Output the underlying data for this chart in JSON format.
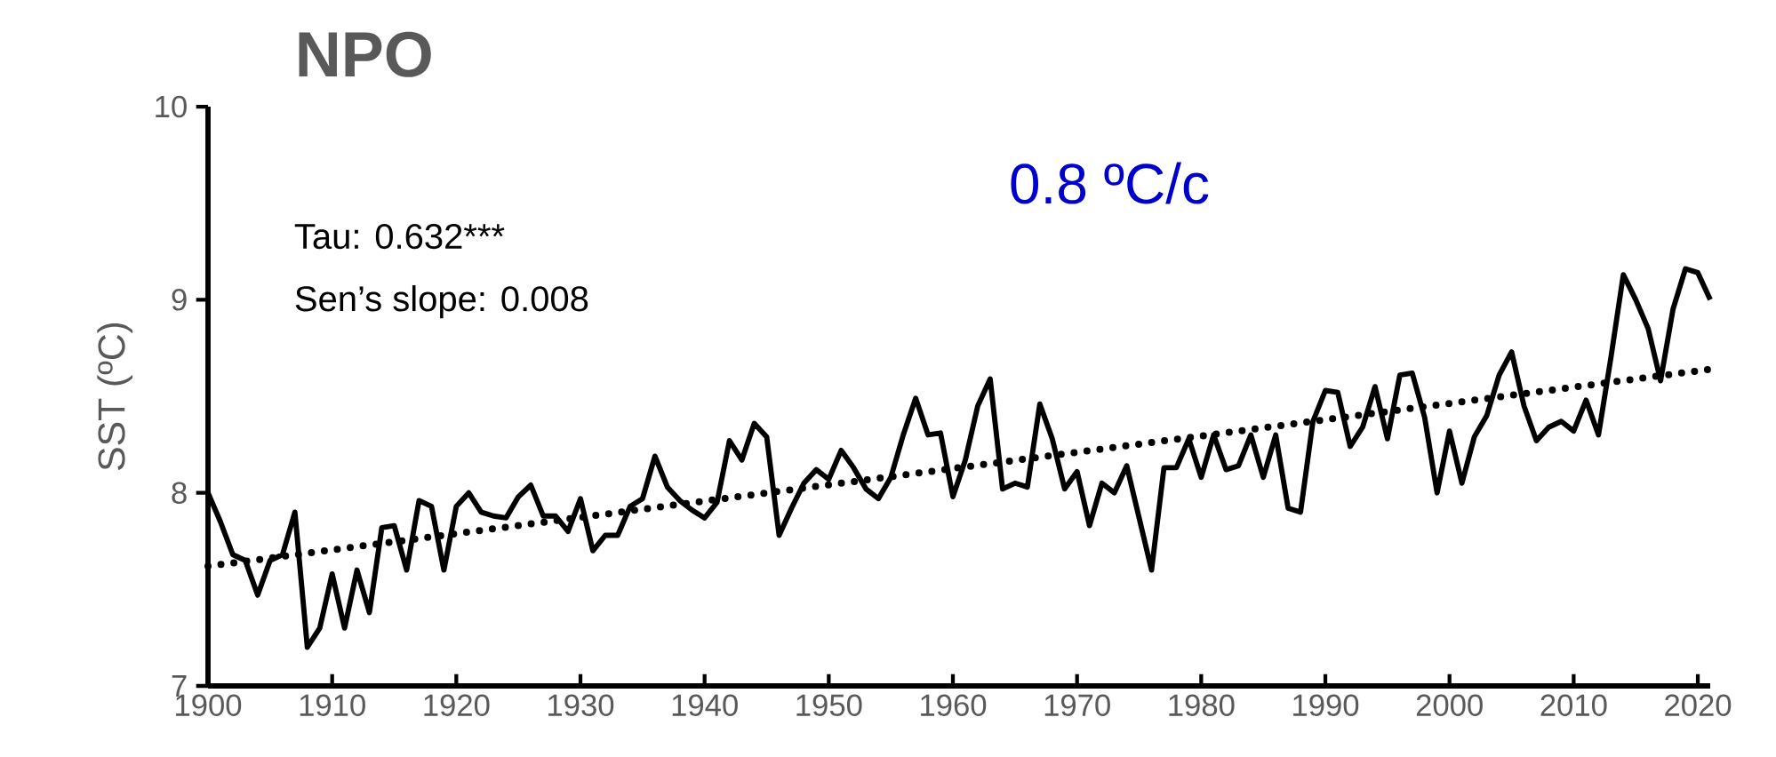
{
  "chart_data": {
    "type": "line",
    "title": "NPO",
    "ylabel": "SST (ºC)",
    "xlim": [
      1900,
      2021
    ],
    "ylim": [
      7,
      10
    ],
    "xticks": [
      1900,
      1910,
      1920,
      1930,
      1940,
      1950,
      1960,
      1970,
      1980,
      1990,
      2000,
      2010,
      2020
    ],
    "yticks": [
      7,
      8,
      9,
      10
    ],
    "marker": "none",
    "grid": false,
    "annotations": [
      "Tau: 0.632***",
      "Sen’s slope: 0.008",
      "0.8 ºC/c"
    ],
    "series": [
      {
        "color": "#000000",
        "line_style": "solid",
        "x": [
          1900,
          1901,
          1902,
          1903,
          1904,
          1905,
          1906,
          1907,
          1908,
          1909,
          1910,
          1911,
          1912,
          1913,
          1914,
          1915,
          1916,
          1917,
          1918,
          1919,
          1920,
          1921,
          1922,
          1923,
          1924,
          1925,
          1926,
          1927,
          1928,
          1929,
          1930,
          1931,
          1932,
          1933,
          1934,
          1935,
          1936,
          1937,
          1938,
          1939,
          1940,
          1941,
          1942,
          1943,
          1944,
          1945,
          1946,
          1947,
          1948,
          1949,
          1950,
          1951,
          1952,
          1953,
          1954,
          1955,
          1956,
          1957,
          1958,
          1959,
          1960,
          1961,
          1962,
          1963,
          1964,
          1965,
          1966,
          1967,
          1968,
          1969,
          1970,
          1971,
          1972,
          1973,
          1974,
          1975,
          1976,
          1977,
          1978,
          1979,
          1980,
          1981,
          1982,
          1983,
          1984,
          1985,
          1986,
          1987,
          1988,
          1989,
          1990,
          1991,
          1992,
          1993,
          1994,
          1995,
          1996,
          1997,
          1998,
          1999,
          2000,
          2001,
          2002,
          2003,
          2004,
          2005,
          2006,
          2007,
          2008,
          2009,
          2010,
          2011,
          2012,
          2013,
          2014,
          2015,
          2016,
          2017,
          2018,
          2019,
          2020,
          2021
        ],
        "values": [
          8.0,
          7.85,
          7.68,
          7.65,
          7.47,
          7.65,
          7.68,
          7.9,
          7.2,
          7.3,
          7.58,
          7.3,
          7.6,
          7.38,
          7.82,
          7.83,
          7.6,
          7.96,
          7.93,
          7.6,
          7.93,
          8.0,
          7.9,
          7.88,
          7.87,
          7.98,
          8.04,
          7.88,
          7.88,
          7.8,
          7.97,
          7.7,
          7.78,
          7.78,
          7.93,
          7.97,
          8.19,
          8.03,
          7.96,
          7.91,
          7.87,
          7.95,
          8.27,
          8.17,
          8.36,
          8.29,
          7.78,
          7.92,
          8.05,
          8.12,
          8.07,
          8.22,
          8.13,
          8.02,
          7.97,
          8.08,
          8.3,
          8.49,
          8.3,
          8.31,
          7.98,
          8.17,
          8.45,
          8.59,
          8.02,
          8.05,
          8.03,
          8.46,
          8.28,
          8.02,
          8.11,
          7.83,
          8.05,
          8.0,
          8.14,
          7.87,
          7.6,
          8.13,
          8.13,
          8.28,
          8.08,
          8.3,
          8.12,
          8.14,
          8.3,
          8.08,
          8.3,
          7.92,
          7.9,
          8.37,
          8.53,
          8.52,
          8.24,
          8.34,
          8.55,
          8.28,
          8.61,
          8.62,
          8.39,
          8.0,
          8.32,
          8.05,
          8.29,
          8.4,
          8.61,
          8.73,
          8.45,
          8.27,
          8.34,
          8.37,
          8.32,
          8.48,
          8.3,
          8.7,
          9.13,
          9.0,
          8.85,
          8.58,
          8.95,
          9.16,
          9.14,
          9.0
        ]
      },
      {
        "color": "#000000",
        "line_style": "dotted",
        "x": [
          1900,
          2021
        ],
        "values": [
          7.62,
          8.64
        ]
      }
    ]
  }
}
